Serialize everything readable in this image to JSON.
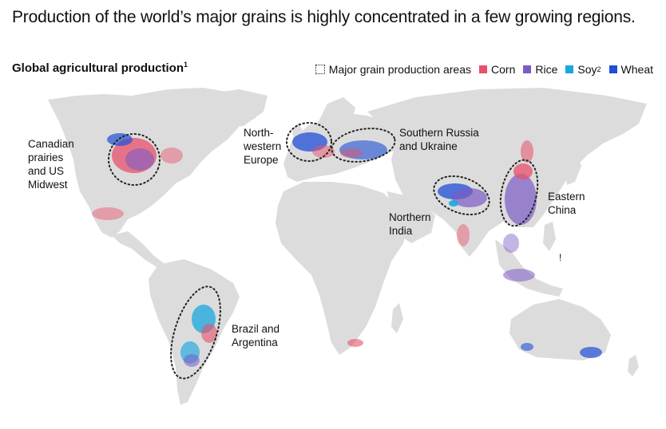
{
  "title": "Production of the world’s major grains is highly concentrated in a few growing regions.",
  "subtitle": {
    "text": "Global agricultural production",
    "sup": "1"
  },
  "legend": {
    "areas": "Major grain production areas",
    "corn": "Corn",
    "rice": "Rice",
    "soy": "Soy",
    "soy_sup": "2",
    "wheat": "Wheat"
  },
  "colors": {
    "land": "#dcdcdc",
    "corn": "#e8506b",
    "rice": "#7b5bc4",
    "soy": "#1aa7e0",
    "wheat": "#1f4fd6"
  },
  "regions": {
    "us": "Canadian\nprairies\nand US\nMidwest",
    "europe": "North-\nwestern\nEurope",
    "russia": "Southern Russia\nand Ukraine",
    "india": "Northern\nIndia",
    "china": "Eastern\nChina",
    "brazil": "Brazil and\nArgentina"
  },
  "annotation_mark": "!"
}
